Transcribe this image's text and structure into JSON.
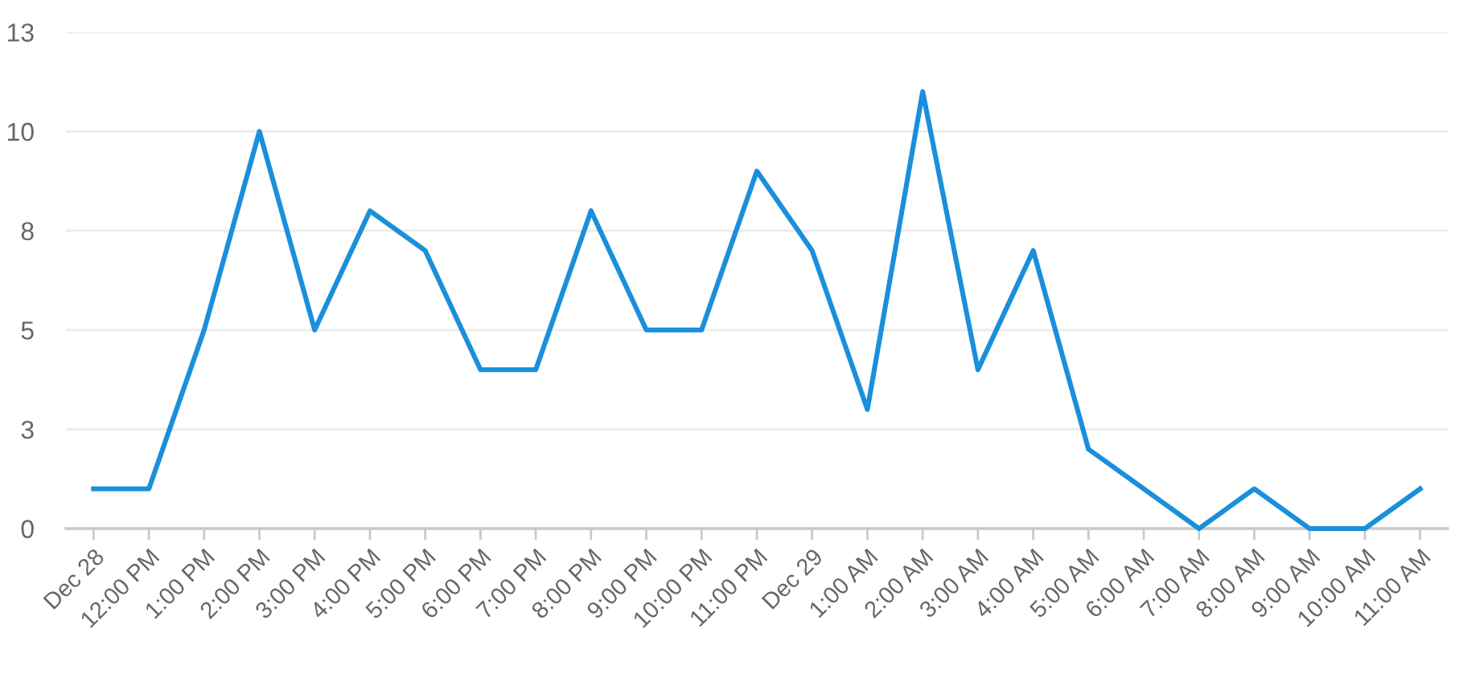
{
  "chart_data": {
    "type": "line",
    "categories": [
      "Dec 28",
      "12:00 PM",
      "1:00 PM",
      "2:00 PM",
      "3:00 PM",
      "4:00 PM",
      "5:00 PM",
      "6:00 PM",
      "7:00 PM",
      "8:00 PM",
      "9:00 PM",
      "10:00 PM",
      "11:00 PM",
      "Dec 29",
      "1:00 AM",
      "2:00 AM",
      "3:00 AM",
      "4:00 AM",
      "5:00 AM",
      "6:00 AM",
      "7:00 AM",
      "8:00 AM",
      "9:00 AM",
      "10:00 AM",
      "11:00 AM"
    ],
    "series": [
      {
        "color": "#1a8fdb",
        "values": [
          1,
          1,
          5,
          10,
          5,
          8,
          7,
          4,
          4,
          8,
          5,
          5,
          9,
          7,
          3,
          11,
          4,
          7,
          2,
          1,
          0,
          1,
          0,
          0,
          1
        ]
      }
    ],
    "ylim": [
      0,
      12.5
    ],
    "yticks": [
      0,
      {
        "value": 2.5,
        "label": "3"
      },
      5,
      {
        "value": 7.5,
        "label": "8"
      },
      10,
      {
        "value": 12.5,
        "label": "13"
      }
    ],
    "grid": "y",
    "marker": "none",
    "line_style": "solid"
  }
}
